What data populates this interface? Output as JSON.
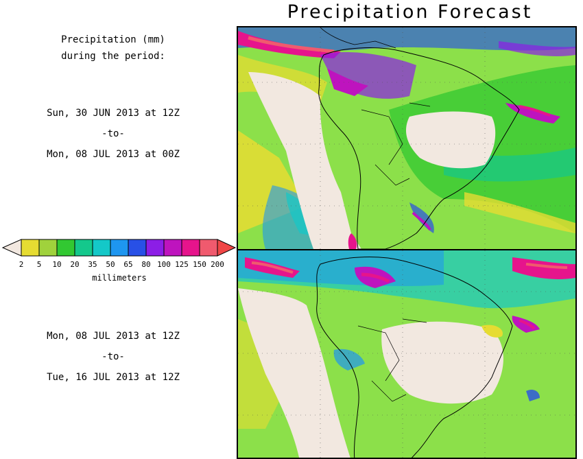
{
  "title": "Precipitation Forecast",
  "left_panel": {
    "heading_line1": "Precipitation (mm)",
    "heading_line2": "during the period:",
    "period1": {
      "start": "Sun, 30 JUN 2013 at 12Z",
      "sep": "-to-",
      "end": "Mon, 08 JUL 2013 at 00Z"
    },
    "period2": {
      "start": "Mon, 08 JUL 2013 at 12Z",
      "sep": "-to-",
      "end": "Tue, 16 JUL 2013 at 12Z"
    }
  },
  "legend": {
    "unit": "millimeters",
    "ticks": [
      "2",
      "5",
      "10",
      "20",
      "35",
      "50",
      "65",
      "80",
      "100",
      "125",
      "150",
      "200"
    ],
    "colors": {
      "below": "#f2e8e0",
      "bins": [
        "#e6dc32",
        "#a0d23c",
        "#32c832",
        "#14c88c",
        "#14c8c8",
        "#1e96f0",
        "#2850e6",
        "#8c1ee6",
        "#be14be",
        "#e6148c",
        "#f05a6e"
      ],
      "above": "#f04646"
    }
  },
  "maps": {
    "land_outline": "#000000",
    "ocean_base": "#8ce04a"
  }
}
